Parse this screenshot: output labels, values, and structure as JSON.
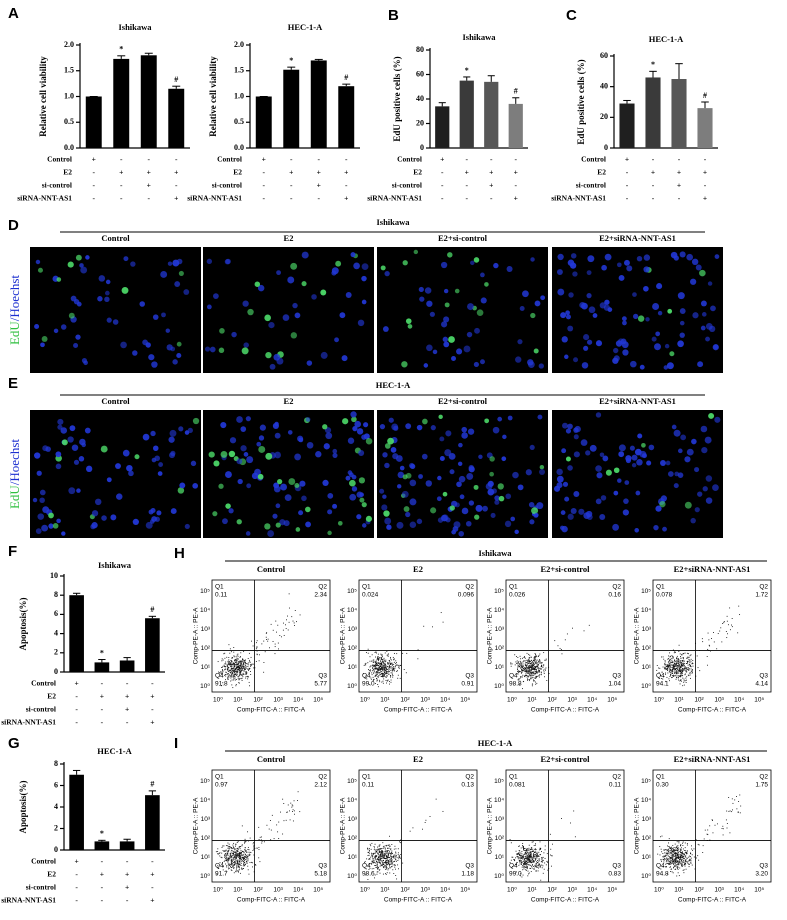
{
  "panel_labels": [
    "A",
    "B",
    "C",
    "D",
    "E",
    "F",
    "G",
    "H",
    "I"
  ],
  "chart_data": [
    {
      "type": "bar",
      "title": "Ishikawa",
      "y_label": "Relative cell viability",
      "values": [
        1.0,
        1.73,
        1.8,
        1.15
      ],
      "errors": [
        0.0,
        0.06,
        0.04,
        0.05
      ],
      "annotations": [
        null,
        "*",
        null,
        "#"
      ],
      "color": "#000000",
      "ylim": [
        0,
        2
      ],
      "yticks": [
        {
          "value": 0,
          "label": "0.0"
        },
        {
          "value": 0.5,
          "label": "0.5"
        },
        {
          "value": 1,
          "label": "1.0"
        },
        {
          "value": 1.5,
          "label": "1.5"
        },
        {
          "value": 2,
          "label": "2.0"
        }
      ]
    },
    {
      "type": "bar",
      "title": "HEC-1-A",
      "y_label": "Relative cell viability",
      "values": [
        1.0,
        1.52,
        1.7,
        1.2
      ],
      "errors": [
        0.0,
        0.05,
        0.02,
        0.04
      ],
      "annotations": [
        null,
        "*",
        null,
        "#"
      ],
      "color": "#000000",
      "ylim": [
        0,
        2
      ],
      "yticks": [
        {
          "value": 0,
          "label": "0.0"
        },
        {
          "value": 0.5,
          "label": "0.5"
        },
        {
          "value": 1,
          "label": "1.0"
        },
        {
          "value": 1.5,
          "label": "1.5"
        },
        {
          "value": 2,
          "label": "2.0"
        }
      ]
    },
    {
      "type": "bar",
      "title": "Ishikawa",
      "y_label": "EdU positive cells (%)",
      "values": [
        34,
        55,
        54,
        36
      ],
      "errors": [
        3,
        3,
        5,
        5
      ],
      "annotations": [
        null,
        "*",
        null,
        "#"
      ],
      "colors": [
        "#1f1f1f",
        "#3a3a3a",
        "#575757",
        "#7d7d7d"
      ],
      "ylim": [
        0,
        80
      ],
      "yticks": [
        0,
        20,
        40,
        60,
        80
      ]
    },
    {
      "type": "bar",
      "title": "HEC-1-A",
      "y_label": "EdU positive cells (%)",
      "values": [
        29,
        46,
        45,
        26
      ],
      "errors": [
        2,
        4,
        10,
        4
      ],
      "annotations": [
        null,
        "*",
        null,
        "#"
      ],
      "colors": [
        "#1f1f1f",
        "#3a3a3a",
        "#575757",
        "#7d7d7d"
      ],
      "ylim": [
        0,
        60
      ],
      "yticks": [
        0,
        20,
        40,
        60
      ]
    },
    {
      "type": "bar",
      "title": "Ishikawa",
      "y_label": "Apoptosis(%)",
      "values": [
        8.0,
        1.0,
        1.2,
        5.6
      ],
      "errors": [
        0.2,
        0.3,
        0.3,
        0.2
      ],
      "annotations": [
        null,
        "*",
        null,
        "#"
      ],
      "color": "#000000",
      "ylim": [
        0,
        10
      ],
      "yticks": [
        0,
        2,
        4,
        6,
        8,
        10
      ]
    },
    {
      "type": "bar",
      "title": "HEC-1-A",
      "y_label": "Apoptosis(%)",
      "values": [
        7.0,
        0.8,
        0.8,
        5.1
      ],
      "errors": [
        0.4,
        0.1,
        0.2,
        0.4
      ],
      "annotations": [
        null,
        "*",
        null,
        "#"
      ],
      "color": "#000000",
      "ylim": [
        0,
        8
      ],
      "yticks": [
        0,
        2,
        4,
        6,
        8
      ]
    }
  ],
  "treatments": {
    "rows": [
      {
        "label": "Control",
        "signs": [
          "+",
          "-",
          "-",
          "-"
        ]
      },
      {
        "label": "E2",
        "signs": [
          "-",
          "+",
          "+",
          "+"
        ]
      },
      {
        "label": "si-control",
        "signs": [
          "-",
          "-",
          "+",
          "-"
        ]
      },
      {
        "label": "siRNA-NNT-AS1",
        "signs": [
          "-",
          "-",
          "-",
          "+"
        ]
      }
    ]
  },
  "conditions": [
    "Control",
    "E2",
    "E2+si-control",
    "E2+siRNA-NNT-AS1"
  ],
  "edu_groups": [
    {
      "title": "Ishikawa",
      "row_label": [
        "EdU",
        "/Hoechst"
      ]
    },
    {
      "title": "HEC-1-A",
      "row_label": [
        "EdU",
        "/Hoechst"
      ]
    }
  ],
  "flow_axes": {
    "x_label": "Comp-FITC-A :: FITC-A",
    "y_label": "Comp-PE-A :: PE-A",
    "ticks": [
      "10⁰",
      "10¹",
      "10²",
      "10³",
      "10⁴",
      "10⁵"
    ],
    "quadrant_names": [
      "Q1",
      "Q2",
      "Q3",
      "Q4"
    ]
  },
  "flow_groups": [
    {
      "title": "Ishikawa",
      "plots": [
        {
          "quadrants": [
            "0.11",
            "2.34",
            "5.77",
            "91.8"
          ]
        },
        {
          "quadrants": [
            "0.024",
            "0.096",
            "0.91",
            "99.0"
          ]
        },
        {
          "quadrants": [
            "0.026",
            "0.16",
            "1.04",
            "98.8"
          ]
        },
        {
          "quadrants": [
            "0.078",
            "1.72",
            "4.14",
            "94.1"
          ]
        }
      ]
    },
    {
      "title": "HEC-1-A",
      "plots": [
        {
          "quadrants": [
            "0.97",
            "2.12",
            "5.18",
            "91.7"
          ]
        },
        {
          "quadrants": [
            "0.11",
            "0.13",
            "1.18",
            "98.6"
          ]
        },
        {
          "quadrants": [
            "0.081",
            "0.11",
            "0.83",
            "99.0"
          ]
        },
        {
          "quadrants": [
            "0.30",
            "1.75",
            "3.20",
            "94.8"
          ]
        }
      ]
    }
  ]
}
